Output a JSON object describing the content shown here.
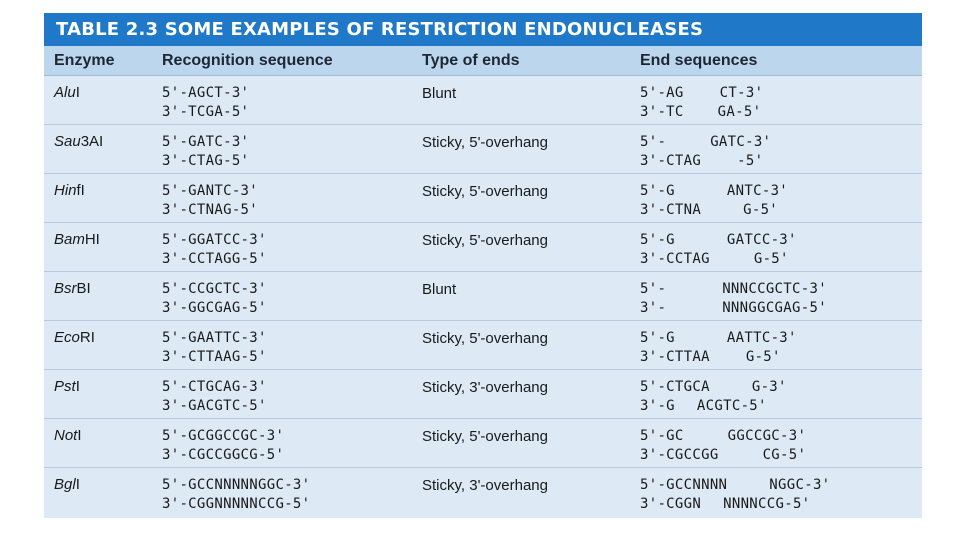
{
  "title": "TABLE 2.3 SOME EXAMPLES OF RESTRICTION ENDONUCLEASES",
  "headers": [
    "Enzyme",
    "Recognition sequence",
    "Type of ends",
    "End sequences"
  ],
  "rows": [
    {
      "enzyme_italic": "Alu",
      "enzyme_roman": "I",
      "recognition": [
        "5'-AGCT-3'",
        "3'-TCGA-5'"
      ],
      "type": "Blunt",
      "ends": [
        [
          "5'-AG",
          "CT-3'"
        ],
        [
          "3'-TC",
          "GA-5'"
        ]
      ]
    },
    {
      "enzyme_italic": "Sau",
      "enzyme_roman": "3AI",
      "recognition": [
        "5'-GATC-3'",
        "3'-CTAG-5'"
      ],
      "type": "Sticky, 5'-overhang",
      "ends": [
        [
          "5'-",
          "GATC-3'"
        ],
        [
          "3'-CTAG",
          "-5'"
        ]
      ]
    },
    {
      "enzyme_italic": "Hin",
      "enzyme_roman": "fI",
      "recognition": [
        "5'-GANTC-3'",
        "3'-CTNAG-5'"
      ],
      "type": "Sticky, 5'-overhang",
      "ends": [
        [
          "5'-G",
          "ANTC-3'"
        ],
        [
          "3'-CTNA",
          "G-5'"
        ]
      ]
    },
    {
      "enzyme_italic": "Bam",
      "enzyme_roman": "HI",
      "recognition": [
        "5'-GGATCC-3'",
        "3'-CCTAGG-5'"
      ],
      "type": "Sticky, 5'-overhang",
      "ends": [
        [
          "5'-G",
          "GATCC-3'"
        ],
        [
          "3'-CCTAG",
          "G-5'"
        ]
      ]
    },
    {
      "enzyme_italic": "Bsr",
      "enzyme_roman": "BI",
      "recognition": [
        "5'-CCGCTC-3'",
        "3'-GGCGAG-5'"
      ],
      "type": "Blunt",
      "ends": [
        [
          "5'-",
          "NNNCCGCTC-3'"
        ],
        [
          "3'-",
          "NNNGGCGAG-5'"
        ]
      ]
    },
    {
      "enzyme_italic": "Eco",
      "enzyme_roman": "RI",
      "recognition": [
        "5'-GAATTC-3'",
        "3'-CTTAAG-5'"
      ],
      "type": "Sticky, 5'-overhang",
      "ends": [
        [
          "5'-G",
          "AATTC-3'"
        ],
        [
          "3'-CTTAA",
          "G-5'"
        ]
      ]
    },
    {
      "enzyme_italic": "Pst",
      "enzyme_roman": "I",
      "recognition": [
        "5'-CTGCAG-3'",
        "3'-GACGTC-5'"
      ],
      "type": "Sticky, 3'-overhang",
      "ends": [
        [
          "5'-CTGCA",
          "G-3'"
        ],
        [
          "3'-G",
          "ACGTC-5'"
        ]
      ]
    },
    {
      "enzyme_italic": "Not",
      "enzyme_roman": "I",
      "recognition": [
        "5'-GCGGCCGC-3'",
        "3'-CGCCGGCG-5'"
      ],
      "type": "Sticky, 5'-overhang",
      "ends": [
        [
          "5'-GC",
          "GGCCGC-3'"
        ],
        [
          "3'-CGCCGG",
          "CG-5'"
        ]
      ]
    },
    {
      "enzyme_italic": "Bgl",
      "enzyme_roman": "I",
      "recognition": [
        "5'-GCCNNNNNGGC-3'",
        "3'-CGGNNNNNCCG-5'"
      ],
      "type": "Sticky, 3'-overhang",
      "ends": [
        [
          "5'-GCCNNNN",
          "NGGC-3'"
        ],
        [
          "3'-CGGN",
          "NNNNCCG-5'"
        ]
      ]
    }
  ]
}
